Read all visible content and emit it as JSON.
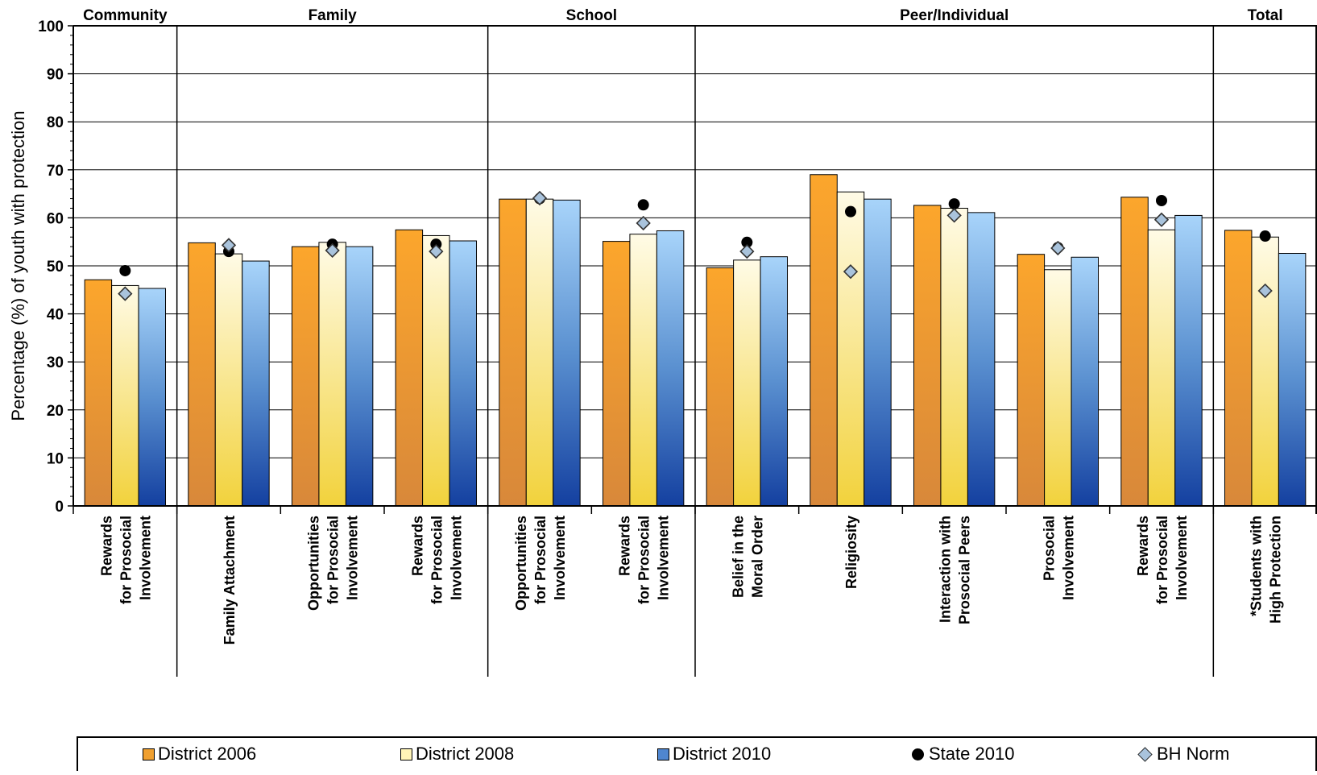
{
  "chart_data": {
    "type": "bar",
    "ylabel": "Percentage (%) of youth with protection",
    "ylim": [
      0,
      100
    ],
    "yticks": [
      "0",
      "10",
      "20",
      "30",
      "40",
      "50",
      "60",
      "70",
      "80",
      "90",
      "100"
    ],
    "grid": true,
    "legend_position": "bottom",
    "groups": [
      {
        "label": "Community",
        "categories": [
          0
        ]
      },
      {
        "label": "Family",
        "categories": [
          1,
          2,
          3
        ]
      },
      {
        "label": "School",
        "categories": [
          4,
          5
        ]
      },
      {
        "label": "Peer/Individual",
        "categories": [
          6,
          7,
          8,
          9,
          10
        ]
      },
      {
        "label": "Total",
        "categories": [
          11
        ]
      }
    ],
    "categories": [
      [
        "Rewards",
        "for Prosocial",
        "Involvement"
      ],
      [
        "Family Attachment"
      ],
      [
        "Opportunities",
        "for Prosocial",
        "Involvement"
      ],
      [
        "Rewards",
        "for Prosocial",
        "Involvement"
      ],
      [
        "Opportunities",
        "for Prosocial",
        "Involvement"
      ],
      [
        "Rewards",
        "for Prosocial",
        "Involvement"
      ],
      [
        "Belief in the",
        "Moral Order"
      ],
      [
        "Religiosity"
      ],
      [
        "Interaction with",
        "Prosocial Peers"
      ],
      [
        "Prosocial",
        "Involvement"
      ],
      [
        "Rewards",
        "for Prosocial",
        "Involvement"
      ],
      [
        "*Students with",
        "High Protection"
      ]
    ],
    "series": [
      {
        "name": "District 2006",
        "kind": "bar",
        "color": "#f0a030",
        "values": [
          47.1,
          54.8,
          54.0,
          57.5,
          63.9,
          55.1,
          49.6,
          69.0,
          62.6,
          52.4,
          64.3,
          57.4
        ]
      },
      {
        "name": "District 2008",
        "kind": "bar",
        "color": "#fff4b8",
        "values": [
          45.9,
          52.5,
          54.9,
          56.3,
          63.9,
          56.6,
          51.2,
          65.4,
          62.0,
          49.2,
          57.5,
          56.0
        ]
      },
      {
        "name": "District 2010",
        "kind": "bar",
        "color": "#8ec0f0",
        "values": [
          45.3,
          51.0,
          54.0,
          55.2,
          63.7,
          57.3,
          51.9,
          63.9,
          61.1,
          51.8,
          60.5,
          52.6
        ]
      },
      {
        "name": "State 2010",
        "kind": "dot",
        "color": "#000000",
        "values": [
          49.0,
          53.0,
          54.5,
          54.5,
          64.0,
          62.7,
          54.9,
          61.3,
          62.9,
          53.8,
          63.6,
          56.2
        ]
      },
      {
        "name": "BH Norm",
        "kind": "diamond",
        "color": "#a9c3dc",
        "values": [
          44.2,
          54.3,
          53.2,
          53.0,
          64.1,
          58.9,
          53.0,
          48.8,
          60.5,
          53.7,
          59.6,
          44.8
        ]
      }
    ]
  }
}
